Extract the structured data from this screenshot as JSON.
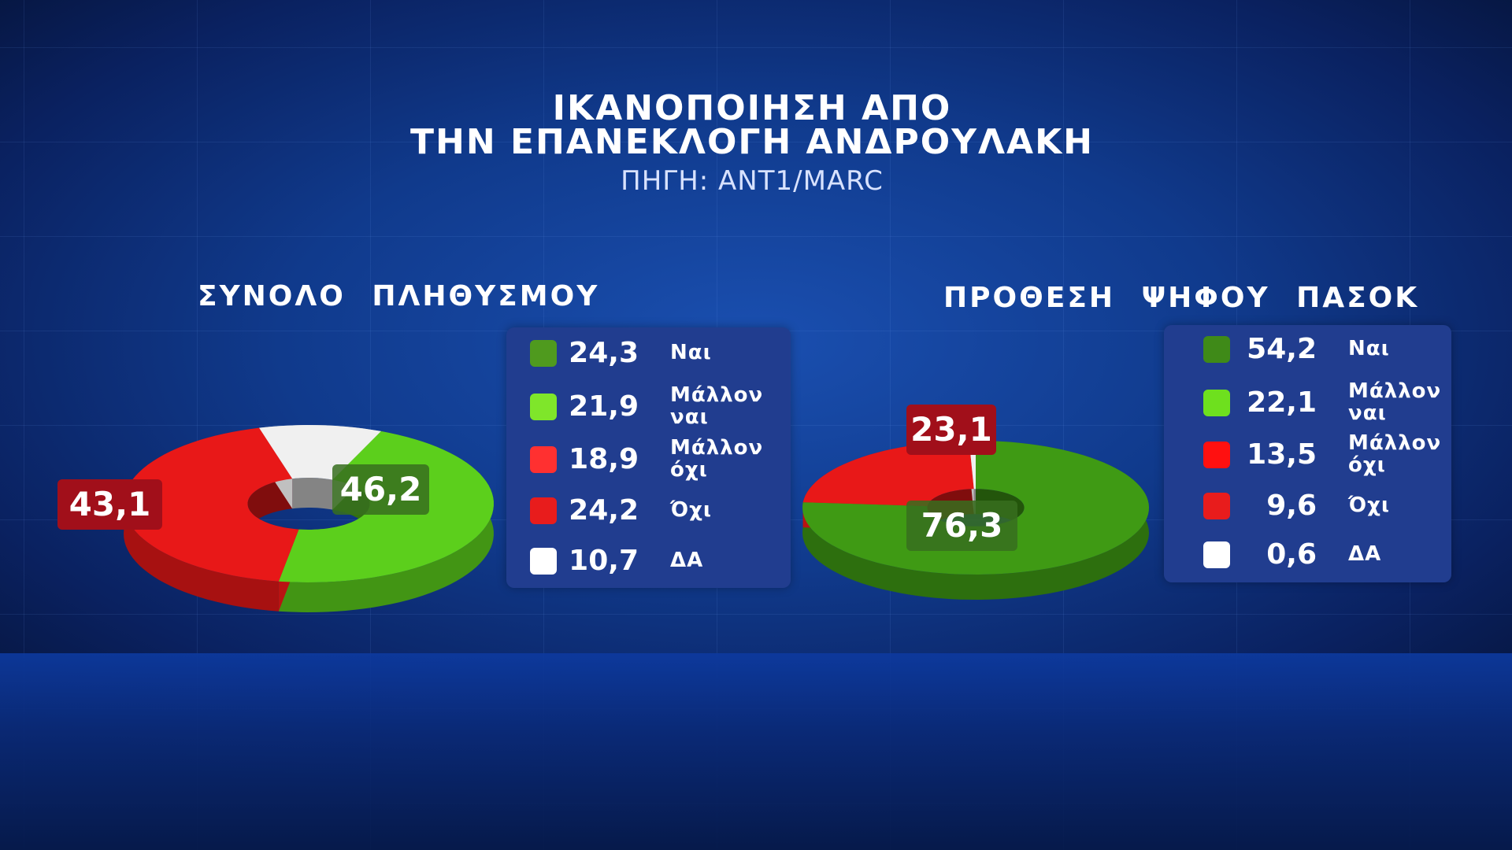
{
  "title_line1": "ΙΚΑΝΟΠΟΙΗΣΗ ΑΠΟ",
  "title_line2": "ΤΗΝ ΕΠΑΝΕΚΛΟΓΗ ΑΝΔΡΟΥΛΑΚΗ",
  "source": "ΠΗΓΗ: ANT1/MARC",
  "colors": {
    "nai": "#4f9a1e",
    "mallon_nai": "#7fe62a",
    "mallon_oxi": "#ff2a2a",
    "oxi": "#e81c1c",
    "da": "#ffffff",
    "label_red": "#a10f1a",
    "label_green": "#3d7a22"
  },
  "chart_data": [
    {
      "type": "pie",
      "title": "ΣΥΝΟΛΟ ΠΛΗΘΥΣΜΟΥ",
      "legend": [
        {
          "value": "24,3",
          "label_line1": "Ναι",
          "label_line2": "",
          "color": "#4f9a1e"
        },
        {
          "value": "21,9",
          "label_line1": "Μάλλον",
          "label_line2": "ναι",
          "color": "#7fe62a"
        },
        {
          "value": "18,9",
          "label_line1": "Μάλλον",
          "label_line2": "όχι",
          "color": "#ff3030"
        },
        {
          "value": "24,2",
          "label_line1": "Όχι",
          "label_line2": "",
          "color": "#e81c1c"
        },
        {
          "value": "10,7",
          "label_line1": "ΔΑ",
          "label_line2": "",
          "color": "#ffffff"
        }
      ],
      "slices": [
        {
          "value": 46.2,
          "label": "46,2",
          "color": "#5ccf1c"
        },
        {
          "value": 43.1,
          "label": "43,1",
          "color": "#e81818"
        },
        {
          "value": 10.7,
          "color": "#f0f0f0"
        }
      ]
    },
    {
      "type": "pie",
      "title": "ΠΡΟΘΕΣΗ ΨΗΦΟΥ ΠΑΣΟΚ",
      "legend": [
        {
          "value": "54,2",
          "label_line1": "Ναι",
          "label_line2": "",
          "color": "#3f8a18"
        },
        {
          "value": "22,1",
          "label_line1": "Μάλλον",
          "label_line2": "ναι",
          "color": "#6ee01e"
        },
        {
          "value": "13,5",
          "label_line1": "Μάλλον",
          "label_line2": "όχι",
          "color": "#ff1010"
        },
        {
          "value": "9,6",
          "label_line1": "Όχι",
          "label_line2": "",
          "color": "#e81c1c"
        },
        {
          "value": "0,6",
          "label_line1": "ΔΑ",
          "label_line2": "",
          "color": "#ffffff"
        }
      ],
      "slices": [
        {
          "value": 76.3,
          "label": "76,3",
          "color": "#3f9a14"
        },
        {
          "value": 23.1,
          "label": "23,1",
          "color": "#e81818"
        },
        {
          "value": 0.6,
          "color": "#f0f0f0"
        }
      ]
    }
  ]
}
